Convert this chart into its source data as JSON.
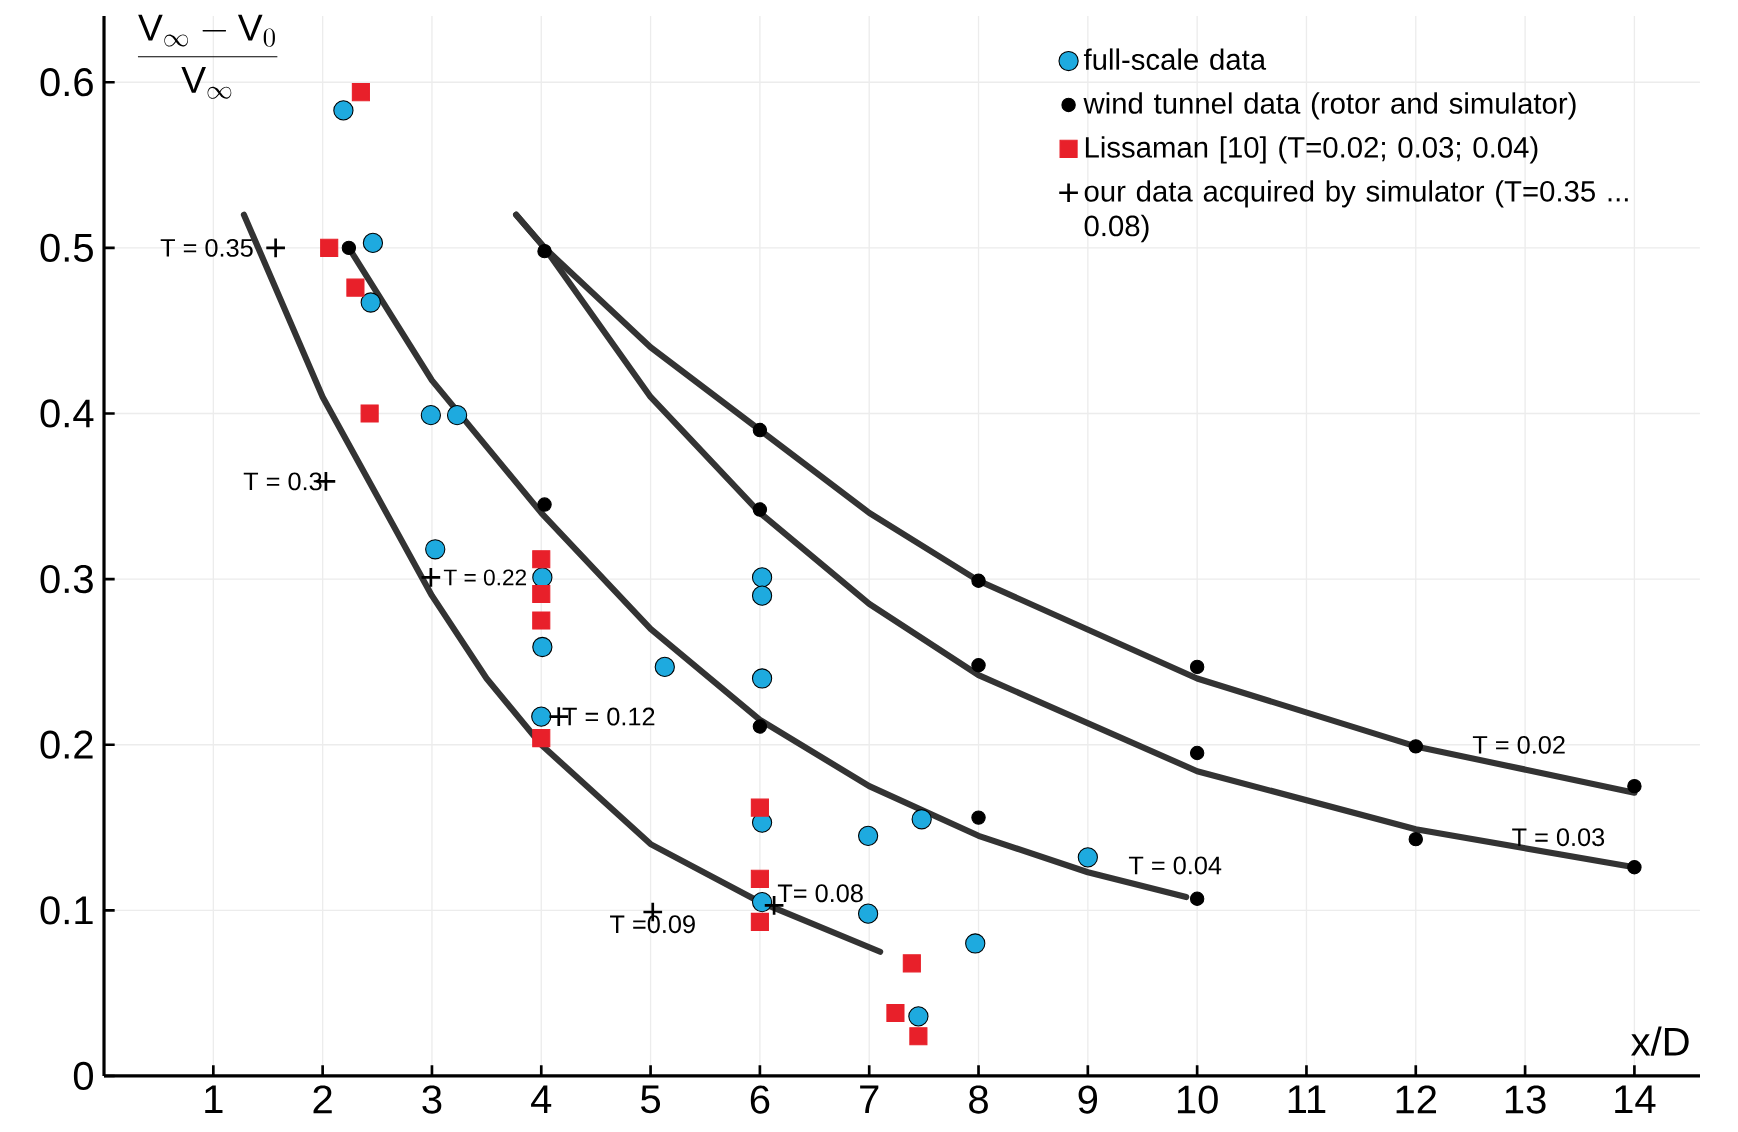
{
  "chart_data": {
    "type": "scatter",
    "xlabel": "x/D",
    "ylabel": "\\frac{\\mathrm{V}_{\\infty} - \\mathrm{V}_{0}}{\\mathrm{V}_{\\infty}}",
    "xlim": [
      0,
      14.6
    ],
    "ylim": [
      0,
      0.64
    ],
    "xticks": [
      1,
      2,
      3,
      4,
      5,
      6,
      7,
      8,
      9,
      10,
      11,
      12,
      13,
      14
    ],
    "yticks": [
      0,
      0.1,
      0.2,
      0.3,
      0.4,
      0.5,
      0.6
    ],
    "grid": true,
    "legend": "top right",
    "series": [
      {
        "name": "full-scale data",
        "marker": "circle",
        "color": "#1eaadf",
        "x": [
          2.19,
          2.46,
          2.44,
          2.99,
          3.23,
          3.03,
          4.01,
          4.01,
          4.0,
          5.13,
          6.02,
          6.02,
          6.02,
          6.02,
          6.02,
          6.99,
          6.99,
          7.48,
          7.97,
          9.0,
          7.45
        ],
        "values": [
          0.583,
          0.503,
          0.467,
          0.399,
          0.399,
          0.318,
          0.301,
          0.259,
          0.217,
          0.247,
          0.301,
          0.29,
          0.24,
          0.153,
          0.105,
          0.145,
          0.098,
          0.155,
          0.08,
          0.132,
          0.036
        ]
      },
      {
        "name": "wind tunnel data (rotor and simulator)",
        "marker": "circle",
        "color": "#000000",
        "x": [
          2.24,
          4.03,
          4.03,
          6,
          6,
          6,
          8,
          8,
          8,
          10,
          10,
          10,
          12,
          12,
          14,
          14
        ],
        "values": [
          0.5,
          0.498,
          0.345,
          0.39,
          0.342,
          0.211,
          0.299,
          0.248,
          0.156,
          0.247,
          0.195,
          0.107,
          0.199,
          0.143,
          0.175,
          0.126
        ]
      },
      {
        "name": "Lissaman [10] (T=0.02; 0.03; 0.04)",
        "marker": "square",
        "color": "#e8202a",
        "x": [
          2.35,
          2.06,
          2.3,
          2.43,
          4.0,
          4.0,
          4.0,
          4.0,
          6.0,
          6.0,
          6.0,
          7.39,
          7.24,
          7.45
        ],
        "values": [
          0.594,
          0.5,
          0.476,
          0.4,
          0.312,
          0.291,
          0.275,
          0.204,
          0.162,
          0.119,
          0.093,
          0.068,
          0.038,
          0.024
        ]
      },
      {
        "name": "our data acquired by simulator (T=0.35 ... 0.08)",
        "marker": "cross",
        "color": "#000000",
        "x": [
          1.57,
          2.03,
          2.99,
          4.16,
          5.02,
          6.13
        ],
        "values": [
          0.5,
          0.359,
          0.301,
          0.217,
          0.099,
          0.103
        ]
      },
      {
        "type": "line",
        "marker": "none",
        "color": "#333333",
        "x": [
          1.28,
          2,
          2.5,
          3,
          3.5,
          4,
          5,
          6,
          7.1
        ],
        "values": [
          0.52,
          0.41,
          0.35,
          0.29,
          0.24,
          0.2,
          0.14,
          0.105,
          0.075
        ]
      },
      {
        "type": "line",
        "marker": "none",
        "color": "#333333",
        "x": [
          2.24,
          3,
          4,
          5,
          6,
          7,
          8,
          9,
          9.9
        ],
        "values": [
          0.5,
          0.42,
          0.34,
          0.27,
          0.215,
          0.175,
          0.145,
          0.123,
          0.108
        ]
      },
      {
        "type": "line",
        "marker": "none",
        "color": "#333333",
        "x": [
          3.77,
          4.03,
          5,
          6,
          7,
          8,
          10,
          12,
          14
        ],
        "values": [
          0.52,
          0.5,
          0.41,
          0.34,
          0.285,
          0.242,
          0.184,
          0.149,
          0.126
        ]
      },
      {
        "type": "line",
        "marker": "none",
        "color": "#333333",
        "x": [
          3.77,
          4.03,
          5,
          6,
          7,
          8,
          10,
          12,
          14
        ],
        "values": [
          0.52,
          0.5,
          0.44,
          0.39,
          0.34,
          0.299,
          0.24,
          0.199,
          0.171
        ]
      }
    ],
    "annotations": [
      {
        "text": "T = 0.35",
        "x": 1.57,
        "y": 0.5
      },
      {
        "text": "T = 0.3",
        "x": 2.03,
        "y": 0.359
      },
      {
        "text": "T = 0.22",
        "x": 2.99,
        "y": 0.301
      },
      {
        "text": "T = 0.12",
        "x": 4.16,
        "y": 0.217
      },
      {
        "text": "T =0.09",
        "x": 5.02,
        "y": 0.099
      },
      {
        "text": "T= 0.08",
        "x": 6.13,
        "y": 0.103
      },
      {
        "text": "T = 0.04",
        "x": 9,
        "y": 0.123
      },
      {
        "text": "T = 0.02",
        "x": 12,
        "y": 0.199
      },
      {
        "text": "T = 0.03",
        "x": 13.5,
        "y": 0.132
      }
    ]
  }
}
